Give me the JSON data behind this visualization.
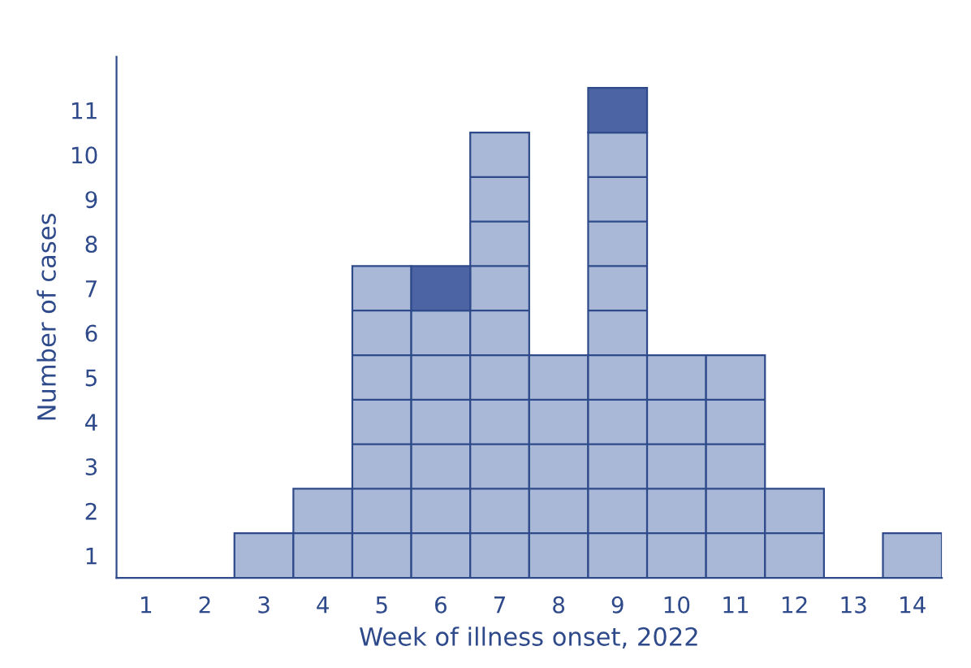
{
  "chart_data": {
    "type": "bar",
    "stacked": true,
    "xlabel": "Week of illness onset, 2022",
    "ylabel": "Number of cases",
    "categories": [
      "1",
      "2",
      "3",
      "4",
      "5",
      "6",
      "7",
      "8",
      "9",
      "10",
      "11",
      "12",
      "13",
      "14"
    ],
    "series": [
      {
        "color": "#a9b8d7",
        "values": [
          0,
          0,
          1,
          2,
          7,
          6,
          10,
          5,
          10,
          5,
          5,
          2,
          0,
          1
        ]
      },
      {
        "color": "#4d64a4",
        "values": [
          0,
          0,
          0,
          0,
          0,
          1,
          0,
          0,
          1,
          0,
          0,
          0,
          0,
          0
        ]
      }
    ],
    "ylim": [
      0,
      11.7
    ],
    "yticks": [
      {
        "value": 0.5,
        "label": "1"
      },
      {
        "value": 1.5,
        "label": "2"
      },
      {
        "value": 2.5,
        "label": "3"
      },
      {
        "value": 3.5,
        "label": "4"
      },
      {
        "value": 4.5,
        "label": "5"
      },
      {
        "value": 5.5,
        "label": "6"
      },
      {
        "value": 6.5,
        "label": "7"
      },
      {
        "value": 7.5,
        "label": "8"
      },
      {
        "value": 8.5,
        "label": "9"
      },
      {
        "value": 9.5,
        "label": "10"
      },
      {
        "value": 10.5,
        "label": "11"
      }
    ],
    "grid": false,
    "legend": false
  }
}
